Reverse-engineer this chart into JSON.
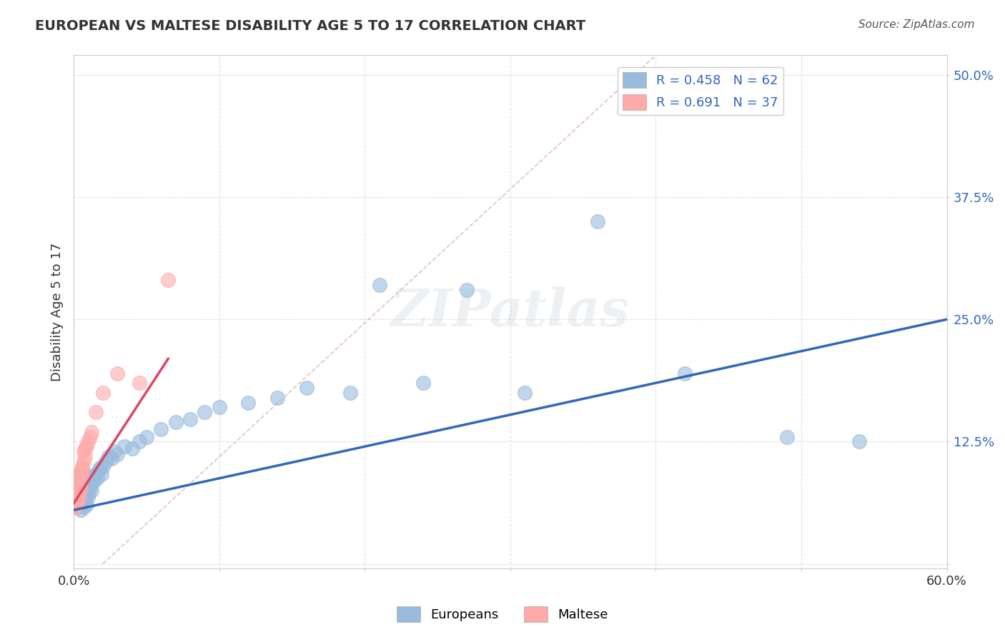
{
  "title": "EUROPEAN VS MALTESE DISABILITY AGE 5 TO 17 CORRELATION CHART",
  "source": "Source: ZipAtlas.com",
  "ylabel": "Disability Age 5 to 17",
  "xlim": [
    0.0,
    0.6
  ],
  "ylim": [
    -0.005,
    0.52
  ],
  "europeans_R": 0.458,
  "europeans_N": 62,
  "maltese_R": 0.691,
  "maltese_N": 37,
  "blue_scatter_color": "#99BBDD",
  "pink_scatter_color": "#FFAAAA",
  "blue_line_color": "#3366BB",
  "pink_line_color": "#DD4466",
  "ref_line_color": "#DDBBBB",
  "background_color": "#FFFFFF",
  "grid_color": "#DDDDDD",
  "watermark": "ZIPatlas",
  "title_color": "#333333",
  "axis_label_color": "#3366BB",
  "eu_x": [
    0.001,
    0.002,
    0.002,
    0.003,
    0.003,
    0.003,
    0.004,
    0.004,
    0.004,
    0.005,
    0.005,
    0.005,
    0.006,
    0.006,
    0.006,
    0.007,
    0.007,
    0.008,
    0.008,
    0.008,
    0.009,
    0.009,
    0.01,
    0.01,
    0.011,
    0.011,
    0.012,
    0.012,
    0.013,
    0.014,
    0.015,
    0.016,
    0.017,
    0.018,
    0.019,
    0.02,
    0.022,
    0.024,
    0.026,
    0.028,
    0.03,
    0.035,
    0.04,
    0.045,
    0.05,
    0.06,
    0.07,
    0.08,
    0.09,
    0.1,
    0.12,
    0.14,
    0.16,
    0.19,
    0.21,
    0.24,
    0.27,
    0.31,
    0.36,
    0.42,
    0.49,
    0.54
  ],
  "eu_y": [
    0.065,
    0.058,
    0.072,
    0.062,
    0.068,
    0.078,
    0.06,
    0.07,
    0.075,
    0.055,
    0.065,
    0.08,
    0.062,
    0.072,
    0.068,
    0.058,
    0.075,
    0.065,
    0.07,
    0.08,
    0.06,
    0.085,
    0.068,
    0.072,
    0.078,
    0.088,
    0.075,
    0.082,
    0.09,
    0.085,
    0.092,
    0.088,
    0.095,
    0.098,
    0.092,
    0.1,
    0.105,
    0.11,
    0.108,
    0.115,
    0.112,
    0.12,
    0.118,
    0.125,
    0.13,
    0.138,
    0.145,
    0.148,
    0.155,
    0.16,
    0.165,
    0.17,
    0.18,
    0.175,
    0.285,
    0.185,
    0.28,
    0.175,
    0.35,
    0.195,
    0.13,
    0.125
  ],
  "mt_x": [
    0.0,
    0.0,
    0.001,
    0.001,
    0.001,
    0.001,
    0.002,
    0.002,
    0.002,
    0.002,
    0.003,
    0.003,
    0.003,
    0.003,
    0.003,
    0.004,
    0.004,
    0.004,
    0.005,
    0.005,
    0.005,
    0.006,
    0.006,
    0.006,
    0.007,
    0.007,
    0.008,
    0.008,
    0.009,
    0.01,
    0.011,
    0.012,
    0.015,
    0.02,
    0.03,
    0.045,
    0.065
  ],
  "mt_y": [
    0.062,
    0.068,
    0.058,
    0.065,
    0.07,
    0.075,
    0.06,
    0.072,
    0.078,
    0.068,
    0.065,
    0.08,
    0.085,
    0.075,
    0.09,
    0.07,
    0.082,
    0.088,
    0.078,
    0.092,
    0.095,
    0.088,
    0.1,
    0.098,
    0.105,
    0.115,
    0.11,
    0.118,
    0.12,
    0.125,
    0.13,
    0.135,
    0.155,
    0.175,
    0.195,
    0.185,
    0.29
  ],
  "eu_line_x0": 0.0,
  "eu_line_y0": 0.055,
  "eu_line_x1": 0.6,
  "eu_line_y1": 0.25,
  "mt_line_x0": 0.0,
  "mt_line_y0": 0.062,
  "mt_line_x1": 0.065,
  "mt_line_y1": 0.21,
  "ref_line_x0": 0.02,
  "ref_line_y0": 0.0,
  "ref_line_x1": 0.4,
  "ref_line_y1": 0.52
}
